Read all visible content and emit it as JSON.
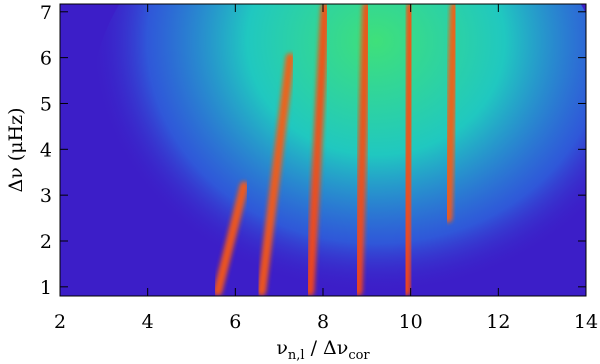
{
  "chart_data": {
    "type": "line",
    "xlabel": [
      "ν",
      "n,l",
      " / Δν",
      "cor"
    ],
    "ylabel": "Δν  (μHz)",
    "xlim": [
      2,
      14
    ],
    "ylim": [
      0.8,
      7.17
    ],
    "xticks": [
      2,
      4,
      6,
      8,
      10,
      12,
      14
    ],
    "yticks": [
      1,
      2,
      3,
      4,
      5,
      6,
      7
    ],
    "background": "#3c1ec8",
    "series": [
      {
        "color": "#ff5a10",
        "x": [
          5.6,
          6.2
        ],
        "values": [
          0.9,
          3.2
        ]
      },
      {
        "color": "#ff5a10",
        "x": [
          6.6,
          7.25
        ],
        "values": [
          0.9,
          6.0
        ]
      },
      {
        "color": "#ff4a08",
        "x": [
          7.7,
          8.05
        ],
        "values": [
          0.9,
          7.1
        ]
      },
      {
        "color": "#ff4a08",
        "x": [
          8.8,
          9.0
        ],
        "values": [
          0.9,
          7.1
        ]
      },
      {
        "color": "#ff4a08",
        "x": [
          9.9,
          10.0
        ],
        "values": [
          0.9,
          7.1
        ]
      },
      {
        "color": "#ff5a10",
        "x": [
          10.85,
          11.0
        ],
        "values": [
          2.5,
          7.1
        ]
      }
    ]
  }
}
